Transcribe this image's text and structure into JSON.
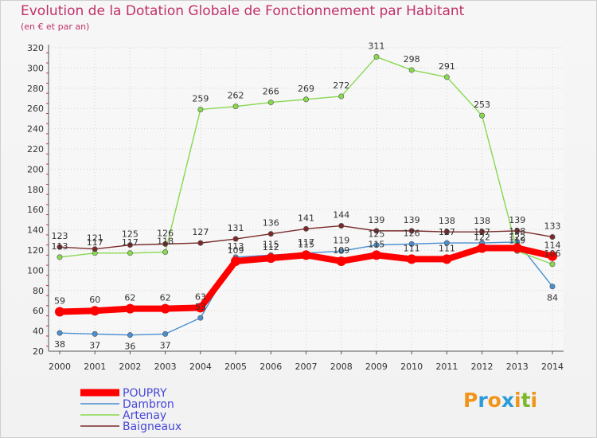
{
  "header": {
    "title": "Evolution de la Dotation Globale de Fonctionnement par Habitant",
    "subtitle": "(en € et par an)"
  },
  "brand": {
    "letters": [
      "P",
      "r",
      "o",
      "x",
      "i",
      "t",
      "i"
    ],
    "colors": [
      "#f0951a",
      "#2c9bd8",
      "#f0951a",
      "#2c9bd8",
      "#f0951a",
      "#7ab828",
      "#f0951a"
    ]
  },
  "chart_data": {
    "type": "line",
    "title": "Evolution de la Dotation Globale de Fonctionnement par Habitant",
    "subtitle": "(en € et par an)",
    "xlabel": "",
    "ylabel": "",
    "x": [
      2000,
      2001,
      2002,
      2003,
      2004,
      2005,
      2006,
      2007,
      2008,
      2009,
      2010,
      2011,
      2012,
      2013,
      2014
    ],
    "ylim": [
      20,
      320
    ],
    "yticks": [
      20,
      40,
      60,
      80,
      100,
      120,
      140,
      160,
      180,
      200,
      220,
      240,
      260,
      280,
      300,
      320
    ],
    "grid": true,
    "legend_position": "bottom-left",
    "series": [
      {
        "name": "POUPRY",
        "color": "#ff0000",
        "values": [
          59,
          60,
          62,
          62,
          63,
          109,
          112,
          115,
          109,
          115,
          111,
          111,
          122,
          122,
          114
        ]
      },
      {
        "name": "Dambron",
        "color": "#4a8fd0",
        "values": [
          38,
          37,
          36,
          37,
          53,
          113,
          115,
          117,
          119,
          125,
          126,
          127,
          127,
          128,
          84
        ]
      },
      {
        "name": "Artenay",
        "color": "#88d850",
        "values": [
          113,
          117,
          117,
          118,
          259,
          262,
          266,
          269,
          272,
          311,
          298,
          291,
          253,
          119,
          106
        ]
      },
      {
        "name": "Baigneaux",
        "color": "#7a2a2a",
        "values": [
          123,
          121,
          125,
          126,
          127,
          131,
          136,
          141,
          144,
          139,
          139,
          138,
          138,
          139,
          133
        ]
      }
    ]
  }
}
